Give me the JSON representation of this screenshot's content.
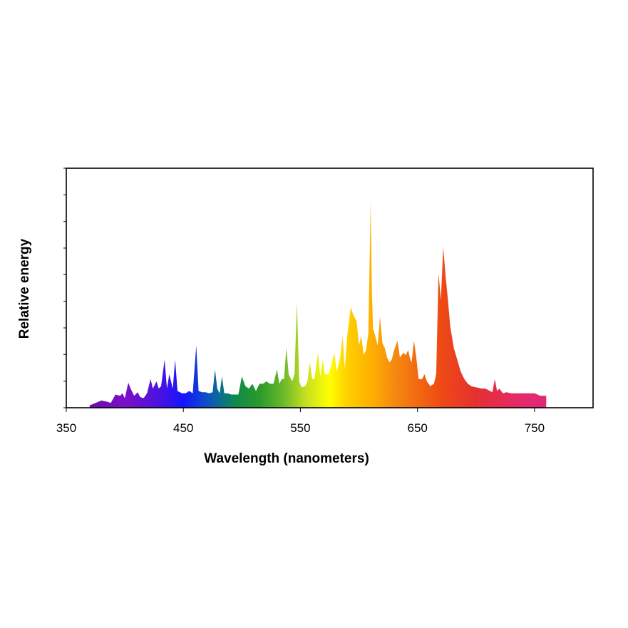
{
  "chart_data": {
    "type": "area",
    "title": "",
    "xlabel": "Wavelength (nanometers)",
    "ylabel": "Relative energy",
    "xlim": [
      350,
      800
    ],
    "ylim": [
      0,
      1
    ],
    "xticks": [
      350,
      450,
      550,
      650,
      750
    ],
    "xtick_labels": [
      "350",
      "450",
      "550",
      "650",
      "750"
    ],
    "ytick_count": 9,
    "y_tick_labels_shown": false,
    "grid": false,
    "legend": "none",
    "fill": "visible-spectrum color gradient",
    "series": [
      {
        "x": [
          370,
          375,
          380,
          385,
          388,
          392,
          396,
          398,
          400,
          403,
          405,
          408,
          411,
          413,
          416,
          419,
          422,
          424,
          427,
          429,
          431,
          434,
          436,
          438,
          441,
          443,
          445,
          447,
          449,
          452,
          455,
          458,
          461,
          463,
          466,
          469,
          472,
          475,
          477,
          479,
          481,
          483,
          485,
          488,
          491,
          494,
          497,
          500,
          503,
          506,
          509,
          512,
          515,
          518,
          521,
          524,
          527,
          530,
          532,
          534,
          536,
          538,
          540,
          543,
          545,
          547,
          549,
          551,
          554,
          556,
          558,
          560,
          562,
          565,
          567,
          569,
          571,
          574,
          577,
          579,
          581,
          584,
          586,
          588,
          590,
          593,
          595,
          598,
          600,
          602,
          604,
          606,
          608,
          610,
          611,
          612,
          614,
          616,
          618,
          620,
          622,
          624,
          626,
          628,
          630,
          633,
          635,
          638,
          640,
          642,
          644,
          645,
          647,
          649,
          651,
          654,
          656,
          658,
          661,
          664,
          666,
          668,
          670,
          672,
          674,
          676,
          678,
          681,
          684,
          687,
          690,
          693,
          696,
          700,
          705,
          708,
          712,
          714,
          716,
          718,
          720,
          723,
          726,
          730,
          733,
          736,
          740,
          745,
          750,
          755,
          760
        ],
        "y": [
          0.01,
          0.02,
          0.03,
          0.025,
          0.02,
          0.055,
          0.05,
          0.06,
          0.04,
          0.105,
          0.08,
          0.05,
          0.065,
          0.045,
          0.04,
          0.06,
          0.12,
          0.08,
          0.11,
          0.08,
          0.09,
          0.2,
          0.08,
          0.14,
          0.08,
          0.2,
          0.07,
          0.065,
          0.06,
          0.06,
          0.07,
          0.06,
          0.26,
          0.07,
          0.065,
          0.065,
          0.06,
          0.065,
          0.16,
          0.08,
          0.06,
          0.13,
          0.06,
          0.06,
          0.055,
          0.055,
          0.055,
          0.13,
          0.09,
          0.08,
          0.1,
          0.07,
          0.1,
          0.1,
          0.11,
          0.1,
          0.1,
          0.16,
          0.1,
          0.12,
          0.12,
          0.25,
          0.14,
          0.11,
          0.14,
          0.44,
          0.11,
          0.085,
          0.09,
          0.11,
          0.19,
          0.12,
          0.12,
          0.23,
          0.13,
          0.2,
          0.14,
          0.14,
          0.19,
          0.23,
          0.15,
          0.21,
          0.3,
          0.16,
          0.3,
          0.42,
          0.39,
          0.36,
          0.26,
          0.3,
          0.22,
          0.24,
          0.31,
          0.86,
          0.5,
          0.33,
          0.3,
          0.26,
          0.38,
          0.27,
          0.25,
          0.21,
          0.19,
          0.2,
          0.24,
          0.28,
          0.21,
          0.23,
          0.22,
          0.24,
          0.2,
          0.19,
          0.28,
          0.21,
          0.12,
          0.12,
          0.14,
          0.11,
          0.09,
          0.1,
          0.14,
          0.56,
          0.45,
          0.67,
          0.55,
          0.45,
          0.34,
          0.25,
          0.2,
          0.15,
          0.12,
          0.1,
          0.09,
          0.085,
          0.08,
          0.08,
          0.07,
          0.065,
          0.12,
          0.07,
          0.08,
          0.06,
          0.065,
          0.06,
          0.06,
          0.06,
          0.06,
          0.06,
          0.06,
          0.05,
          0.05
        ]
      }
    ]
  }
}
